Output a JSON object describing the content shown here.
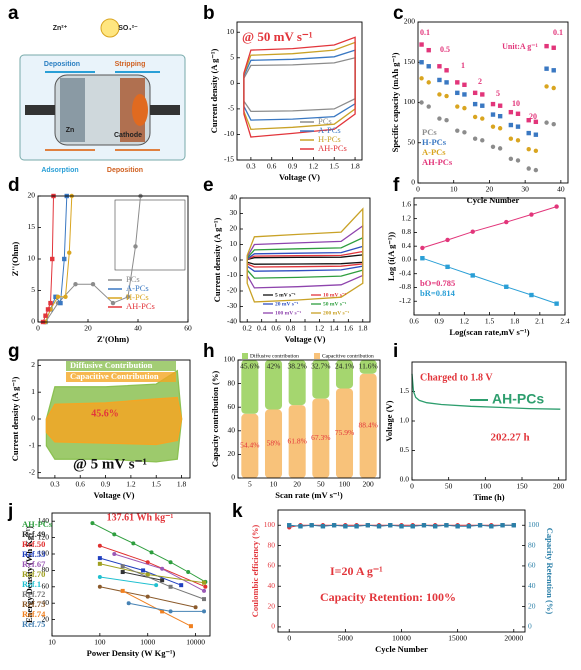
{
  "chart_data": [
    {
      "type": "diagram",
      "label": "a",
      "labels": [
        "Zn²⁺",
        "SO₄²⁻",
        "Deposition",
        "Stripping",
        "Zn",
        "Cathode",
        "Adsorption",
        "Deposition"
      ]
    },
    {
      "type": "line",
      "label": "b",
      "xlabel": "Voltage (V)",
      "ylabel": "Current density (A g⁻¹)",
      "annotations": [
        "@ 50 mV s⁻¹"
      ],
      "xlim": [
        0.1,
        1.9
      ],
      "xticks": [
        0.3,
        0.6,
        0.9,
        1.2,
        1.5,
        1.8
      ],
      "ylim": [
        -15,
        12
      ],
      "yticks": [
        -15,
        -10,
        -5,
        0,
        5,
        10
      ],
      "x": [
        0.2,
        0.3,
        0.9,
        1.5,
        1.8,
        1.8,
        1.5,
        0.9,
        0.3,
        0.2
      ],
      "closed": true,
      "series": [
        {
          "name": "PCs",
          "color": "#8c8c8c",
          "values": [
            1,
            3.5,
            3.6,
            4,
            5,
            -3,
            -5,
            -5.4,
            -5.5,
            -3.5
          ]
        },
        {
          "name": "A-PCs",
          "color": "#3a78c2",
          "values": [
            1.5,
            4.5,
            4.7,
            5.2,
            6.5,
            -4,
            -6.5,
            -7,
            -7.2,
            -4.5
          ]
        },
        {
          "name": "H-PCs",
          "color": "#c9a227",
          "values": [
            1.8,
            5.5,
            5.8,
            6.5,
            8,
            -5,
            -8,
            -8.6,
            -9,
            -5.5
          ]
        },
        {
          "name": "AH-PCs",
          "color": "#e2353b",
          "values": [
            2,
            6.5,
            6.8,
            7.5,
            9,
            -6,
            -9,
            -9.8,
            -10.5,
            -6
          ]
        }
      ]
    },
    {
      "type": "scatter",
      "label": "c",
      "xlabel": "Cycle Number",
      "ylabel": "Specific capacity (mAh g⁻¹)",
      "annotations": [
        "0.1",
        "0.5",
        "1",
        "2",
        "5",
        "10",
        "20",
        "0.1",
        "Unit:A g⁻¹"
      ],
      "xlim": [
        0,
        42
      ],
      "xticks": [
        0,
        10,
        20,
        30,
        40
      ],
      "ylim": [
        0,
        200
      ],
      "yticks": [
        0,
        50,
        100,
        150,
        200
      ],
      "x": [
        1,
        3,
        6,
        8,
        11,
        13,
        16,
        18,
        21,
        23,
        26,
        28,
        31,
        33,
        36,
        38
      ],
      "series": [
        {
          "name": "PCs",
          "color": "#8c8c8c",
          "values": [
            100,
            95,
            80,
            78,
            65,
            63,
            55,
            53,
            45,
            43,
            30,
            28,
            18,
            16,
            75,
            73
          ]
        },
        {
          "name": "H-PCs",
          "color": "#3a78c2",
          "values": [
            150,
            145,
            128,
            125,
            112,
            110,
            98,
            96,
            85,
            83,
            72,
            70,
            62,
            60,
            142,
            140
          ]
        },
        {
          "name": "A-PCs",
          "color": "#d9a520",
          "values": [
            130,
            125,
            110,
            108,
            95,
            93,
            82,
            80,
            70,
            68,
            55,
            53,
            42,
            40,
            120,
            118
          ]
        },
        {
          "name": "AH-PCs",
          "color": "#e2357a",
          "values": [
            172,
            165,
            145,
            140,
            125,
            122,
            112,
            110,
            98,
            96,
            88,
            86,
            78,
            76,
            170,
            168
          ]
        }
      ]
    },
    {
      "type": "line",
      "label": "d",
      "markers": true,
      "xlabel": "Z'(Ohm)",
      "ylabel": "Z''(Ohm)",
      "xlim": [
        0,
        60
      ],
      "xticks": [
        0,
        20,
        40,
        60
      ],
      "ylim": [
        0,
        20
      ],
      "yticks": [
        0,
        5,
        10,
        15,
        20
      ],
      "series": [
        {
          "name": "PCs",
          "color": "#8c8c8c",
          "x": [
            3,
            8,
            15,
            22,
            30,
            36,
            39,
            41
          ],
          "values": [
            0,
            3,
            6,
            6,
            3,
            4,
            12,
            20
          ]
        },
        {
          "name": "A-PCs",
          "color": "#3a78c2",
          "x": [
            3,
            5,
            7,
            9,
            10.5,
            11.5
          ],
          "values": [
            0,
            2,
            4,
            3,
            10,
            20
          ]
        },
        {
          "name": "H-PCs",
          "color": "#d9a520",
          "x": [
            3,
            5,
            8,
            11,
            12.5,
            13.5
          ],
          "values": [
            0,
            2,
            4,
            4,
            11,
            20
          ]
        },
        {
          "name": "AH-PCs",
          "color": "#e2353b",
          "x": [
            2,
            3,
            4,
            5,
            5.7,
            6.2
          ],
          "values": [
            0,
            1,
            2,
            3,
            10,
            20
          ]
        }
      ]
    },
    {
      "type": "line",
      "label": "e",
      "xlabel": "Voltage (V)",
      "ylabel": "Current density (A g⁻¹)",
      "xlim": [
        0.1,
        1.9
      ],
      "xticks": [
        0.2,
        0.4,
        0.6,
        0.8,
        1.0,
        1.2,
        1.4,
        1.6,
        1.8
      ],
      "ylim": [
        -40,
        40
      ],
      "yticks": [
        -40,
        -30,
        -20,
        -10,
        0,
        10,
        20,
        30,
        40
      ],
      "x": [
        0.2,
        0.3,
        0.9,
        1.5,
        1.8,
        1.8,
        1.5,
        0.9,
        0.3,
        0.2
      ],
      "closed": true,
      "series": [
        {
          "name": "5 mV s⁻¹",
          "color": "#111111",
          "values": [
            0.3,
            1.5,
            1.7,
            1.8,
            3.3,
            -1.5,
            -2.4,
            -2.6,
            -2.7,
            -1.5
          ]
        },
        {
          "name": "10 mV s⁻¹",
          "color": "#e2353b",
          "values": [
            0.5,
            2.5,
            2.8,
            3,
            5.5,
            -2.5,
            -4,
            -4.3,
            -4.5,
            -2.5
          ]
        },
        {
          "name": "20 mV s⁻¹",
          "color": "#2f4fc0",
          "values": [
            0.8,
            4,
            4.4,
            4.8,
            8.8,
            -4,
            -6.4,
            -6.9,
            -7.2,
            -4
          ]
        },
        {
          "name": "50 mV s⁻¹",
          "color": "#2e9e3e",
          "values": [
            1.3,
            6.5,
            7.2,
            7.8,
            14.3,
            -6.5,
            -10.4,
            -11.2,
            -11.7,
            -6.5
          ]
        },
        {
          "name": "100 mV s⁻¹",
          "color": "#8e44ad",
          "values": [
            2,
            10,
            11,
            12,
            22,
            -10,
            -16,
            -17.2,
            -18,
            -10
          ]
        },
        {
          "name": "200 mV s⁻¹",
          "color": "#c9a227",
          "values": [
            3,
            15,
            16.5,
            18,
            33,
            -15,
            -24,
            -25.8,
            -27,
            -15
          ]
        }
      ]
    },
    {
      "type": "line",
      "label": "f",
      "markers": true,
      "xlabel": "Log(scan rate,mV s⁻¹)",
      "ylabel": "Log (i(A g⁻¹))",
      "xlim": [
        0.6,
        2.4
      ],
      "xticks": [
        0.6,
        0.9,
        1.2,
        1.5,
        1.8,
        2.1,
        2.4
      ],
      "ylim": [
        -1.6,
        1.8
      ],
      "yticks": [
        -1.2,
        -0.8,
        -0.4,
        {
          "value": 0,
          "label": "0.0"
        },
        0.4,
        0.8,
        1.2,
        1.6
      ],
      "x": [
        0.7,
        1.0,
        1.3,
        1.7,
        2.0,
        2.3
      ],
      "series": [
        {
          "name": "bO=0.785",
          "color": "#e2357a",
          "values": [
            0.35,
            0.58,
            0.82,
            1.1,
            1.32,
            1.55
          ]
        },
        {
          "name": "bR=0.814",
          "color": "#2a9fd6",
          "values": [
            0.05,
            -0.2,
            -0.45,
            -0.78,
            -1.02,
            -1.27
          ]
        }
      ]
    },
    {
      "type": "line",
      "label": "g",
      "xlabel": "Voltage (V)",
      "ylabel": "Current density (A g⁻¹)",
      "annotations": [
        "45.6%",
        "@ 5 mV s⁻¹"
      ],
      "xlim": [
        0.1,
        1.9
      ],
      "xticks": [
        0.3,
        0.6,
        0.9,
        1.2,
        1.5,
        1.8
      ],
      "ylim": [
        -2.2,
        2.2
      ],
      "yticks": [
        -2,
        -1,
        0,
        1,
        2
      ],
      "x": [
        0.2,
        0.3,
        0.9,
        1.5,
        1.75,
        1.8,
        1.75,
        1.5,
        0.9,
        0.3,
        0.2
      ],
      "closed": true,
      "fill": true,
      "series": [
        {
          "name": "Diffusive  Contribution",
          "color": "#8cc152",
          "values": [
            0,
            1.2,
            1.2,
            1.3,
            1.8,
            0,
            -1.5,
            -1.6,
            -1.5,
            -1.5,
            -1
          ]
        },
        {
          "name": "Capacitive Contribution",
          "color": "#f5a623",
          "values": [
            0,
            0.55,
            0.6,
            0.75,
            0.8,
            0,
            -0.8,
            -0.95,
            -0.9,
            -0.85,
            -0.5
          ]
        }
      ]
    },
    {
      "type": "bar",
      "label": "h",
      "xlabel": "Scan rate (mV s⁻¹)",
      "ylabel": "Capacity contribution (%)",
      "categories": [
        "5",
        "10",
        "20",
        "50",
        "100",
        "200"
      ],
      "ylim": [
        0,
        100
      ],
      "yticks": [
        0,
        20,
        40,
        60,
        80,
        100
      ],
      "series": [
        {
          "name": "Diffusive contribution",
          "color": "#a5d66f",
          "values": [
            45.6,
            42,
            38.2,
            32.7,
            24.1,
            11.6
          ],
          "value_labels": [
            "45.6%",
            "42%",
            "38.2%",
            "32.7%",
            "24.1%",
            "11.6%"
          ]
        },
        {
          "name": "Capacitive contribution",
          "color": "#f8c27a",
          "values": [
            54.4,
            58,
            61.8,
            67.3,
            75.9,
            88.4
          ],
          "value_labels": [
            "54.4%",
            "58%",
            "61.8%",
            "67.3%",
            "75.9%",
            "88.4%"
          ]
        }
      ]
    },
    {
      "type": "line",
      "label": "i",
      "xlabel": "Time (h)",
      "ylabel": "Voltage (V)",
      "annotations": [
        "Charged to 1.8 V",
        "202.27 h"
      ],
      "xlim": [
        0,
        210
      ],
      "xticks": [
        0,
        50,
        100,
        150,
        200
      ],
      "ylim": [
        0,
        2
      ],
      "yticks": [
        {
          "value": 0,
          "label": "0.0"
        },
        0.5,
        {
          "value": 1,
          "label": "1.0"
        },
        1.5
      ],
      "x": [
        0,
        2,
        5,
        10,
        20,
        40,
        80,
        120,
        160,
        202.27
      ],
      "series": [
        {
          "name": "AH-PCs",
          "color": "#2e9e6e",
          "values": [
            1.8,
            1.5,
            1.4,
            1.35,
            1.31,
            1.28,
            1.25,
            1.23,
            1.21,
            1.2
          ]
        }
      ]
    },
    {
      "type": "line",
      "label": "j",
      "markers": true,
      "xlog": true,
      "xlabel": "Power Density (W Kg⁻¹)",
      "ylabel": "Energy Density (Wh Kg⁻¹)",
      "annotations": [
        "137.61 Wh kg⁻¹"
      ],
      "xlim": [
        10,
        20000
      ],
      "xticks": [
        10,
        100,
        1000,
        10000
      ],
      "ylim": [
        0,
        150
      ],
      "yticks": [
        20,
        40,
        60,
        80,
        100,
        120,
        140
      ],
      "series": [
        {
          "name": "AH-PCs",
          "color": "#2e9e3e",
          "x": [
            70,
            200,
            500,
            1200,
            3000,
            7000,
            16000
          ],
          "values": [
            137.61,
            124,
            113,
            102,
            90,
            78,
            66
          ]
        },
        {
          "name": "Ref.49",
          "color": "#333333",
          "x": [
            300,
            2000
          ],
          "values": [
            78,
            68
          ]
        },
        {
          "name": "Ref.50",
          "color": "#e03030",
          "x": [
            100,
            1000,
            16000
          ],
          "values": [
            110,
            90,
            60
          ]
        },
        {
          "name": "Ref.53",
          "color": "#2040c0",
          "x": [
            100,
            800,
            5000
          ],
          "values": [
            95,
            80,
            62
          ]
        },
        {
          "name": "Ref.67",
          "color": "#9b59b6",
          "x": [
            200,
            2000,
            15000
          ],
          "values": [
            100,
            82,
            55
          ]
        },
        {
          "name": "Ref.70",
          "color": "#a0a020",
          "x": [
            100,
            1000,
            15000
          ],
          "values": [
            88,
            75,
            65
          ]
        },
        {
          "name": "Ref.1",
          "color": "#20c0d0",
          "x": [
            100,
            1500
          ],
          "values": [
            72,
            62
          ]
        },
        {
          "name": "Ref.72",
          "color": "#777777",
          "x": [
            300,
            3000,
            15000
          ],
          "values": [
            85,
            60,
            45
          ]
        },
        {
          "name": "Ref.73",
          "color": "#8b5a2b",
          "x": [
            100,
            1000,
            10000
          ],
          "values": [
            60,
            48,
            35
          ]
        },
        {
          "name": "Ref.74",
          "color": "#f08020",
          "x": [
            300,
            2000,
            8000
          ],
          "values": [
            55,
            30,
            12
          ]
        },
        {
          "name": "Ref.75",
          "color": "#4682b4",
          "x": [
            400,
            3000,
            15000
          ],
          "values": [
            40,
            30,
            30
          ]
        }
      ]
    },
    {
      "type": "line",
      "label": "k",
      "markers": true,
      "xlabel": "Cycle Number",
      "ylabel": "Coulombic efficiency (%)",
      "y2label": "Capacity Retention (%)",
      "annotations": [
        "I=20 A g⁻¹",
        "Capacity Retention: 100%"
      ],
      "xlim": [
        -1000,
        21000
      ],
      "xticks": [
        0,
        5000,
        10000,
        15000,
        20000
      ],
      "ylim": [
        -5,
        115
      ],
      "yticks": [
        0,
        20,
        40,
        60,
        80,
        100
      ],
      "y2lim": [
        -5,
        115
      ],
      "y2ticks": [
        0,
        20,
        40,
        60,
        80,
        100
      ],
      "x": [
        0,
        1000,
        2000,
        3000,
        4000,
        5000,
        6000,
        7000,
        8000,
        9000,
        10000,
        11000,
        12000,
        13000,
        14000,
        15000,
        16000,
        17000,
        18000,
        19000,
        20000
      ],
      "series": [
        {
          "name": "Coulombic efficiency",
          "color": "#e2353b",
          "values": [
            98,
            100,
            100,
            100,
            100,
            100,
            100,
            100,
            100,
            100,
            100,
            100,
            100,
            100,
            100,
            100,
            100,
            100,
            100,
            100,
            100
          ]
        },
        {
          "name": "Capacity Retention",
          "color": "#2a7fa8",
          "axis": "y2",
          "values": [
            100,
            99,
            100,
            99,
            100,
            99,
            99,
            100,
            99,
            100,
            99,
            99,
            100,
            99,
            100,
            99,
            99,
            100,
            99,
            100,
            100
          ]
        }
      ]
    }
  ]
}
